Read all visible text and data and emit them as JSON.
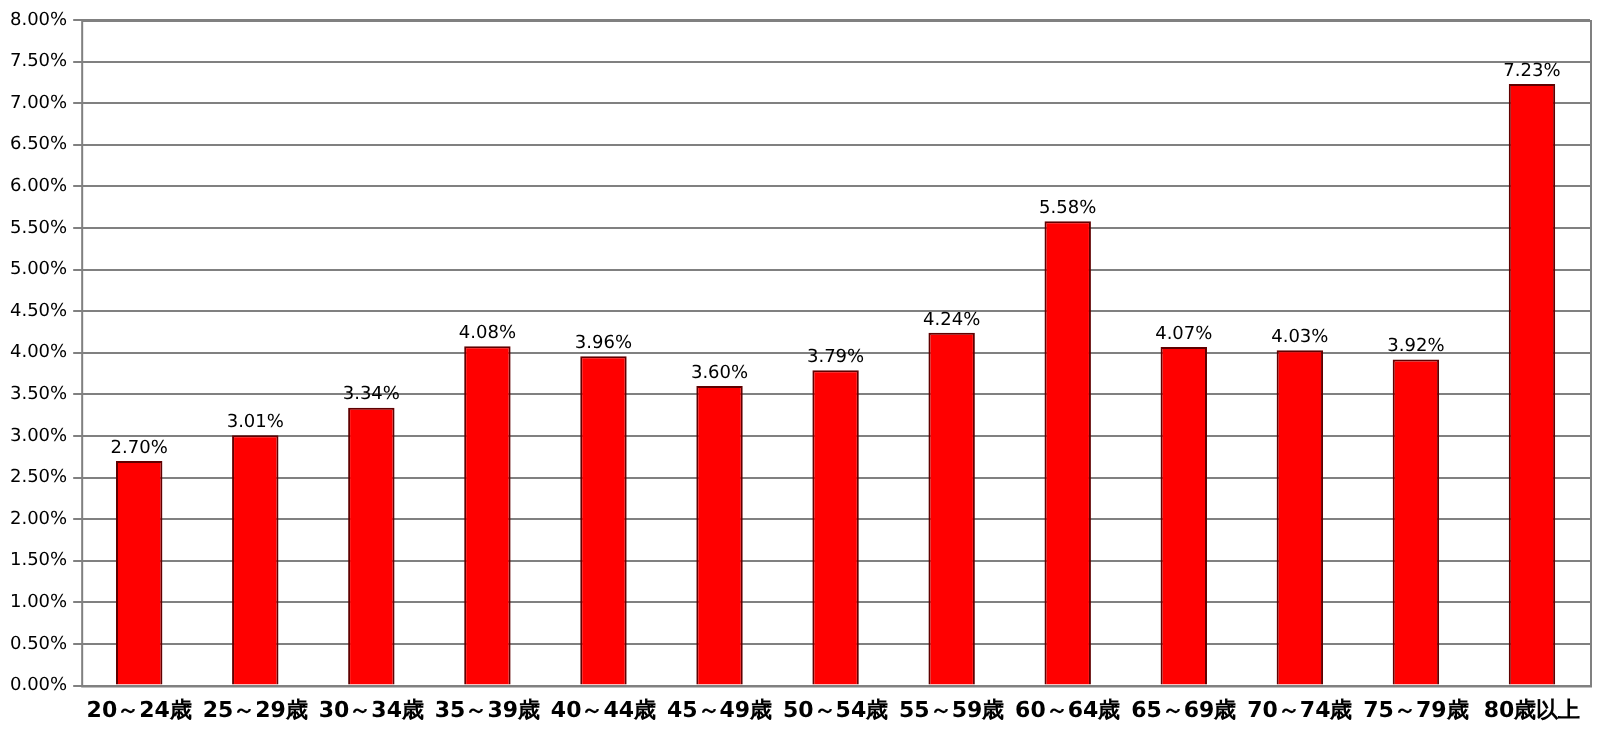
{
  "chart_data": {
    "type": "bar",
    "categories": [
      "20～24歳",
      "25～29歳",
      "30～34歳",
      "35～39歳",
      "40～44歳",
      "45～49歳",
      "50～54歳",
      "55～59歳",
      "60～64歳",
      "65～69歳",
      "70～74歳",
      "75～79歳",
      "80歳以上"
    ],
    "values": [
      2.7,
      3.01,
      3.34,
      4.08,
      3.96,
      3.6,
      3.79,
      4.24,
      5.58,
      4.07,
      4.03,
      3.92,
      7.23
    ],
    "value_labels": [
      "2.70%",
      "3.01%",
      "3.34%",
      "4.08%",
      "3.96%",
      "3.60%",
      "3.79%",
      "4.24%",
      "5.58%",
      "4.07%",
      "4.03%",
      "3.92%",
      "7.23%"
    ],
    "color": "#ff0000",
    "ylim": [
      0,
      8
    ],
    "yticks": [
      {
        "value": 0,
        "label": "0.00%"
      },
      {
        "value": 0.5,
        "label": "0.50%"
      },
      {
        "value": 1,
        "label": "1.00%"
      },
      {
        "value": 1.5,
        "label": "1.50%"
      },
      {
        "value": 2,
        "label": "2.00%"
      },
      {
        "value": 2.5,
        "label": "2.50%"
      },
      {
        "value": 3,
        "label": "3.00%"
      },
      {
        "value": 3.5,
        "label": "3.50%"
      },
      {
        "value": 4,
        "label": "4.00%"
      },
      {
        "value": 4.5,
        "label": "4.50%"
      },
      {
        "value": 5,
        "label": "5.00%"
      },
      {
        "value": 5.5,
        "label": "5.50%"
      },
      {
        "value": 6,
        "label": "6.00%"
      },
      {
        "value": 6.5,
        "label": "6.50%"
      },
      {
        "value": 7,
        "label": "7.00%"
      },
      {
        "value": 7.5,
        "label": "7.50%"
      },
      {
        "value": 8,
        "label": "8.00%"
      }
    ],
    "grid": "y",
    "legend": false
  }
}
